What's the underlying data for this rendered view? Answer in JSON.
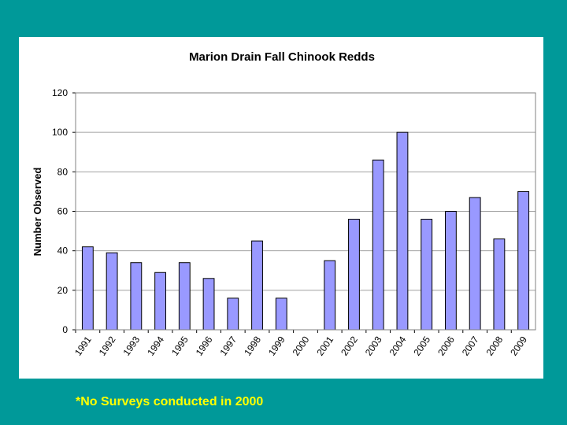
{
  "chart_data": {
    "type": "bar",
    "title": "Marion Drain Fall Chinook Redds",
    "xlabel": "",
    "ylabel": "Number Observed",
    "categories": [
      "1991",
      "1992",
      "1993",
      "1994",
      "1995",
      "1996",
      "1997",
      "1998",
      "1999",
      "2000",
      "2001",
      "2002",
      "2003",
      "2004",
      "2005",
      "2006",
      "2007",
      "2008",
      "2009"
    ],
    "values": [
      42,
      39,
      34,
      29,
      34,
      26,
      16,
      45,
      16,
      0,
      35,
      56,
      86,
      100,
      56,
      60,
      67,
      46,
      70
    ],
    "ylim": [
      0,
      120
    ],
    "yticks": [
      0,
      20,
      40,
      60,
      80,
      100,
      120
    ],
    "grid": true,
    "legend": "none",
    "colors": {
      "bar_fill": "#9999ff",
      "bar_stroke": "#000000",
      "grid": "#a0a0a0",
      "plot_border": "#808080",
      "panel_background": "#ffffff",
      "page_background": "#009999"
    }
  },
  "footnote": "*No Surveys conducted in 2000",
  "footnote_color": "#ffff00"
}
